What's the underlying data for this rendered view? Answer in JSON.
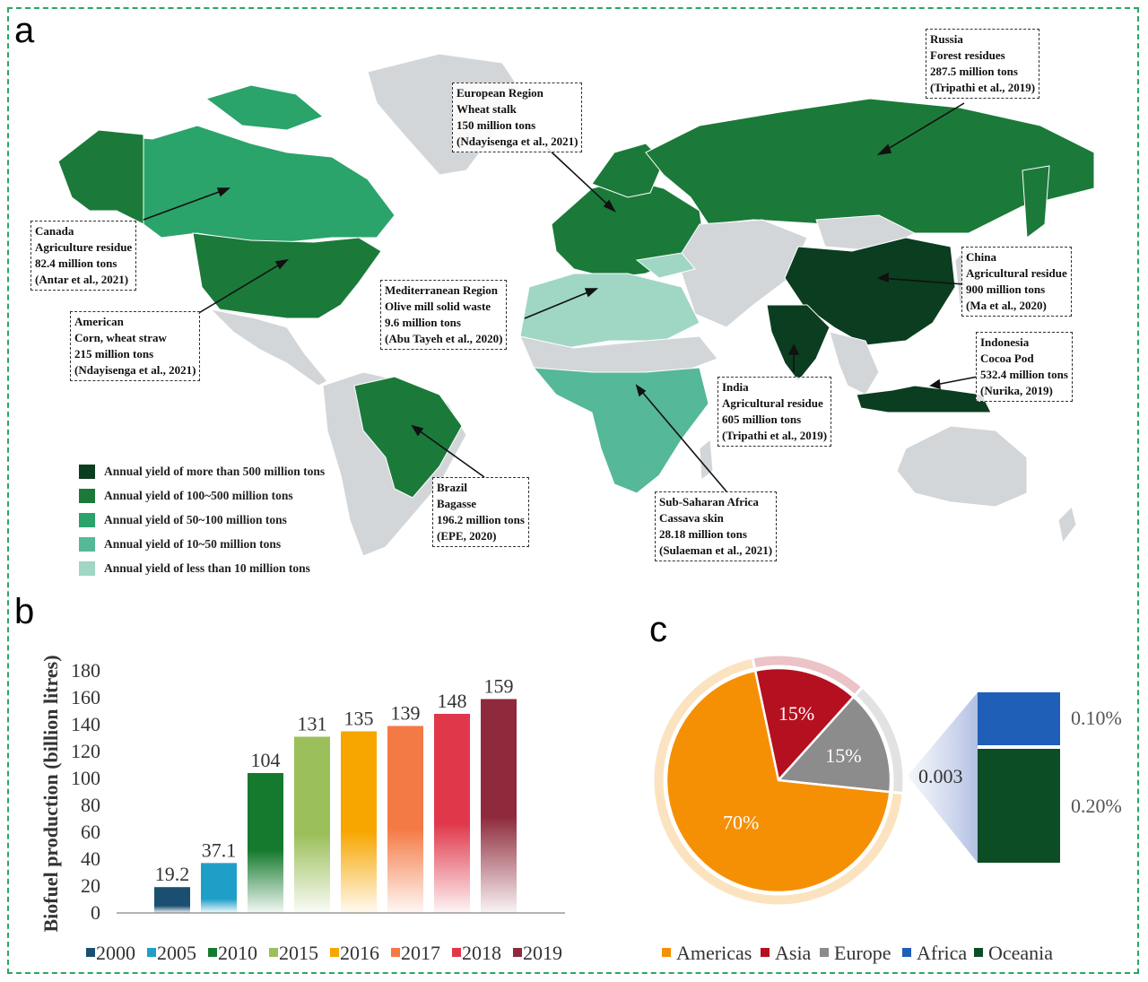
{
  "panels": {
    "a": "a",
    "b": "b",
    "c": "c"
  },
  "colors": {
    "frame": "#2aa860",
    "land_gray": "#d3d6d9",
    "ocean": "#ffffff"
  },
  "map": {
    "legend": [
      {
        "label": "Annual yield of more than 500 million tons",
        "color": "#0b3d20"
      },
      {
        "label": "Annual yield of 100~500 million tons",
        "color": "#1b7a3a"
      },
      {
        "label": "Annual yield of 50~100 million tons",
        "color": "#2aa46a"
      },
      {
        "label": "Annual yield of 10~50 million tons",
        "color": "#55b898"
      },
      {
        "label": "Annual yield of less than 10 million tons",
        "color": "#9fd6c4"
      }
    ],
    "callouts": [
      {
        "id": "russia",
        "lines": [
          "Russia",
          "Forest residues",
          "287.5 million tons",
          "(Tripathi et al., 2019)"
        ]
      },
      {
        "id": "europe",
        "lines": [
          "European Region",
          "Wheat stalk",
          "150 million tons",
          "(Ndayisenga et al., 2021)"
        ]
      },
      {
        "id": "canada",
        "lines": [
          "Canada",
          "Agriculture residue",
          "82.4 million tons",
          "(Antar et al., 2021)"
        ]
      },
      {
        "id": "america",
        "lines": [
          "American",
          "Corn, wheat straw",
          "215 million tons",
          "(Ndayisenga et al., 2021)"
        ]
      },
      {
        "id": "mediterranean",
        "lines": [
          "Mediterranean Region",
          "Olive mill solid waste",
          "9.6 million tons",
          "(Abu Tayeh et al., 2020)"
        ]
      },
      {
        "id": "china",
        "lines": [
          "China",
          "Agricultural residue",
          "900 million tons",
          "(Ma et al., 2020)"
        ]
      },
      {
        "id": "indonesia",
        "lines": [
          "Indonesia",
          "Cocoa Pod",
          "532.4 million tons",
          "(Nurika, 2019)"
        ]
      },
      {
        "id": "india",
        "lines": [
          "India",
          "Agricultural residue",
          "605 million tons",
          "(Tripathi et al., 2019)"
        ]
      },
      {
        "id": "brazil",
        "lines": [
          "Brazil",
          "Bagasse",
          "196.2 million tons",
          "(EPE, 2020)"
        ]
      },
      {
        "id": "ssafrica",
        "lines": [
          "Sub-Saharan Africa",
          "Cassava skin",
          "28.18 million tons",
          "(Sulaeman et al., 2021)"
        ]
      }
    ]
  },
  "chart_data": [
    {
      "type": "bar",
      "panel": "b",
      "ylabel": "Biofuel production  (billion litres)",
      "ylim": [
        0,
        180
      ],
      "yticks": [
        0,
        20,
        40,
        60,
        80,
        100,
        120,
        140,
        160,
        180
      ],
      "categories": [
        "2000",
        "2005",
        "2010",
        "2015",
        "2016",
        "2017",
        "2018",
        "2019"
      ],
      "values": [
        19.2,
        37.1,
        104,
        131,
        135,
        139,
        148,
        159
      ],
      "value_labels": [
        "19.2",
        "37.1",
        "104",
        "131",
        "135",
        "139",
        "148",
        "159"
      ],
      "colors": [
        "#1b4f72",
        "#1f9fc8",
        "#157a2e",
        "#9bbf5a",
        "#f7a600",
        "#f47a45",
        "#e0384a",
        "#8e2a3b"
      ],
      "legend": "bottom"
    },
    {
      "type": "pie",
      "panel": "c",
      "slices": [
        {
          "name": "Americas",
          "value": 70,
          "label": "70%",
          "color": "#f59005"
        },
        {
          "name": "Asia",
          "value": 15,
          "label": "15%",
          "color": "#b5101f"
        },
        {
          "name": "Europe",
          "value": 15,
          "label": "15%",
          "color": "#8c8c8c"
        }
      ],
      "breakout": {
        "label": "0.003",
        "segments": [
          {
            "name": "Africa",
            "value": 0.1,
            "label": "0.10%",
            "color": "#1f5fb8"
          },
          {
            "name": "Oceania",
            "value": 0.2,
            "label": "0.20%",
            "color": "#0c4d26"
          }
        ]
      },
      "legend_order": [
        "Americas",
        "Asia",
        "Europe",
        "Africa",
        "Oceania"
      ],
      "legend_colors": [
        "#f59005",
        "#b5101f",
        "#8c8c8c",
        "#1f5fb8",
        "#0c4d26"
      ],
      "legend": "bottom"
    }
  ]
}
